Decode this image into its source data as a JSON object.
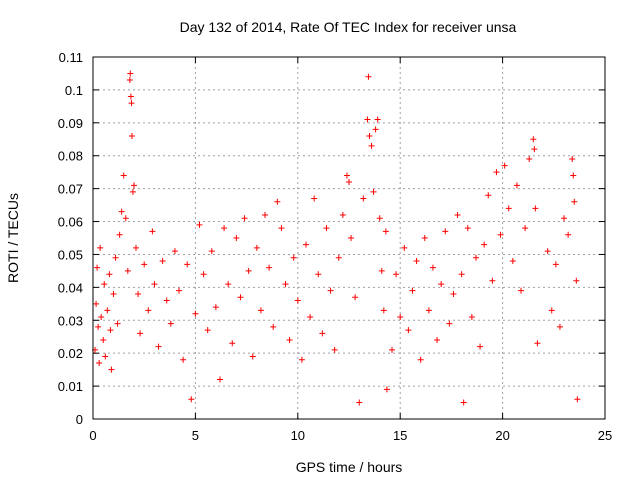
{
  "chart_data": {
    "type": "scatter",
    "title": "Day 132 of 2014, Rate Of TEC Index for receiver unsa",
    "xlabel": "GPS time / hours",
    "ylabel": "ROTI / TECUs",
    "xlim": [
      0,
      25
    ],
    "ylim": [
      0,
      0.11
    ],
    "xticks": [
      0,
      5,
      10,
      15,
      20,
      25
    ],
    "xtick_labels": [
      "0",
      "5",
      "10",
      "15",
      "20",
      "25"
    ],
    "yticks": [
      0,
      0.01,
      0.02,
      0.03,
      0.04,
      0.05,
      0.06,
      0.07,
      0.08,
      0.09,
      0.1,
      0.11
    ],
    "ytick_labels": [
      "0",
      "0.01",
      "0.02",
      "0.03",
      "0.04",
      "0.05",
      "0.06",
      "0.07",
      "0.08",
      "0.09",
      "0.1",
      "0.11"
    ],
    "grid": true,
    "marker": "+",
    "color": "#ff0000",
    "series": [
      {
        "points": [
          [
            0.1,
            0.021
          ],
          [
            0.15,
            0.035
          ],
          [
            0.2,
            0.046
          ],
          [
            0.25,
            0.028
          ],
          [
            0.3,
            0.017
          ],
          [
            0.35,
            0.052
          ],
          [
            0.4,
            0.031
          ],
          [
            0.5,
            0.024
          ],
          [
            0.55,
            0.041
          ],
          [
            0.6,
            0.019
          ],
          [
            0.7,
            0.033
          ],
          [
            0.8,
            0.044
          ],
          [
            0.85,
            0.027
          ],
          [
            0.9,
            0.015
          ],
          [
            1.0,
            0.038
          ],
          [
            1.1,
            0.049
          ],
          [
            1.2,
            0.029
          ],
          [
            1.3,
            0.056
          ],
          [
            1.4,
            0.063
          ],
          [
            1.5,
            0.074
          ],
          [
            1.6,
            0.061
          ],
          [
            1.7,
            0.045
          ],
          [
            1.8,
            0.103
          ],
          [
            1.82,
            0.105
          ],
          [
            1.85,
            0.098
          ],
          [
            1.88,
            0.096
          ],
          [
            1.9,
            0.086
          ],
          [
            1.95,
            0.069
          ],
          [
            2.0,
            0.071
          ],
          [
            2.1,
            0.052
          ],
          [
            2.2,
            0.038
          ],
          [
            2.3,
            0.026
          ],
          [
            2.5,
            0.047
          ],
          [
            2.7,
            0.033
          ],
          [
            2.9,
            0.057
          ],
          [
            3.0,
            0.041
          ],
          [
            3.2,
            0.022
          ],
          [
            3.4,
            0.048
          ],
          [
            3.6,
            0.036
          ],
          [
            3.8,
            0.029
          ],
          [
            4.0,
            0.051
          ],
          [
            4.2,
            0.039
          ],
          [
            4.4,
            0.018
          ],
          [
            4.6,
            0.047
          ],
          [
            4.8,
            0.006
          ],
          [
            5.0,
            0.032
          ],
          [
            5.2,
            0.059
          ],
          [
            5.4,
            0.044
          ],
          [
            5.6,
            0.027
          ],
          [
            5.8,
            0.051
          ],
          [
            6.0,
            0.034
          ],
          [
            6.2,
            0.012
          ],
          [
            6.4,
            0.058
          ],
          [
            6.6,
            0.041
          ],
          [
            6.8,
            0.023
          ],
          [
            7.0,
            0.055
          ],
          [
            7.2,
            0.037
          ],
          [
            7.4,
            0.061
          ],
          [
            7.6,
            0.045
          ],
          [
            7.8,
            0.019
          ],
          [
            8.0,
            0.052
          ],
          [
            8.2,
            0.033
          ],
          [
            8.4,
            0.062
          ],
          [
            8.6,
            0.046
          ],
          [
            8.8,
            0.028
          ],
          [
            9.0,
            0.066
          ],
          [
            9.2,
            0.058
          ],
          [
            9.4,
            0.041
          ],
          [
            9.6,
            0.024
          ],
          [
            9.8,
            0.049
          ],
          [
            10.0,
            0.036
          ],
          [
            10.2,
            0.018
          ],
          [
            10.4,
            0.053
          ],
          [
            10.6,
            0.031
          ],
          [
            10.8,
            0.067
          ],
          [
            11.0,
            0.044
          ],
          [
            11.2,
            0.026
          ],
          [
            11.4,
            0.058
          ],
          [
            11.6,
            0.039
          ],
          [
            11.8,
            0.021
          ],
          [
            12.0,
            0.049
          ],
          [
            12.2,
            0.062
          ],
          [
            12.4,
            0.074
          ],
          [
            12.5,
            0.072
          ],
          [
            12.6,
            0.055
          ],
          [
            12.8,
            0.037
          ],
          [
            13.0,
            0.005
          ],
          [
            13.2,
            0.067
          ],
          [
            13.4,
            0.091
          ],
          [
            13.45,
            0.104
          ],
          [
            13.5,
            0.086
          ],
          [
            13.6,
            0.083
          ],
          [
            13.7,
            0.069
          ],
          [
            13.8,
            0.088
          ],
          [
            13.9,
            0.091
          ],
          [
            14.0,
            0.061
          ],
          [
            14.1,
            0.045
          ],
          [
            14.2,
            0.033
          ],
          [
            14.3,
            0.057
          ],
          [
            14.35,
            0.009
          ],
          [
            14.6,
            0.021
          ],
          [
            14.8,
            0.044
          ],
          [
            15.0,
            0.031
          ],
          [
            15.2,
            0.052
          ],
          [
            15.4,
            0.027
          ],
          [
            15.6,
            0.039
          ],
          [
            15.8,
            0.048
          ],
          [
            16.0,
            0.018
          ],
          [
            16.2,
            0.055
          ],
          [
            16.4,
            0.033
          ],
          [
            16.6,
            0.046
          ],
          [
            16.8,
            0.024
          ],
          [
            17.0,
            0.041
          ],
          [
            17.2,
            0.057
          ],
          [
            17.4,
            0.029
          ],
          [
            17.6,
            0.038
          ],
          [
            17.8,
            0.062
          ],
          [
            18.0,
            0.044
          ],
          [
            18.1,
            0.005
          ],
          [
            18.3,
            0.058
          ],
          [
            18.5,
            0.031
          ],
          [
            18.7,
            0.049
          ],
          [
            18.9,
            0.022
          ],
          [
            19.1,
            0.053
          ],
          [
            19.3,
            0.068
          ],
          [
            19.5,
            0.042
          ],
          [
            19.7,
            0.075
          ],
          [
            19.9,
            0.056
          ],
          [
            20.1,
            0.077
          ],
          [
            20.3,
            0.064
          ],
          [
            20.5,
            0.048
          ],
          [
            20.7,
            0.071
          ],
          [
            20.9,
            0.039
          ],
          [
            21.1,
            0.058
          ],
          [
            21.3,
            0.079
          ],
          [
            21.5,
            0.085
          ],
          [
            21.55,
            0.082
          ],
          [
            21.6,
            0.064
          ],
          [
            21.7,
            0.023
          ],
          [
            22.2,
            0.051
          ],
          [
            22.4,
            0.033
          ],
          [
            22.6,
            0.047
          ],
          [
            22.8,
            0.028
          ],
          [
            23.0,
            0.061
          ],
          [
            23.2,
            0.056
          ],
          [
            23.4,
            0.079
          ],
          [
            23.45,
            0.074
          ],
          [
            23.5,
            0.066
          ],
          [
            23.6,
            0.042
          ],
          [
            23.65,
            0.006
          ]
        ]
      }
    ]
  }
}
